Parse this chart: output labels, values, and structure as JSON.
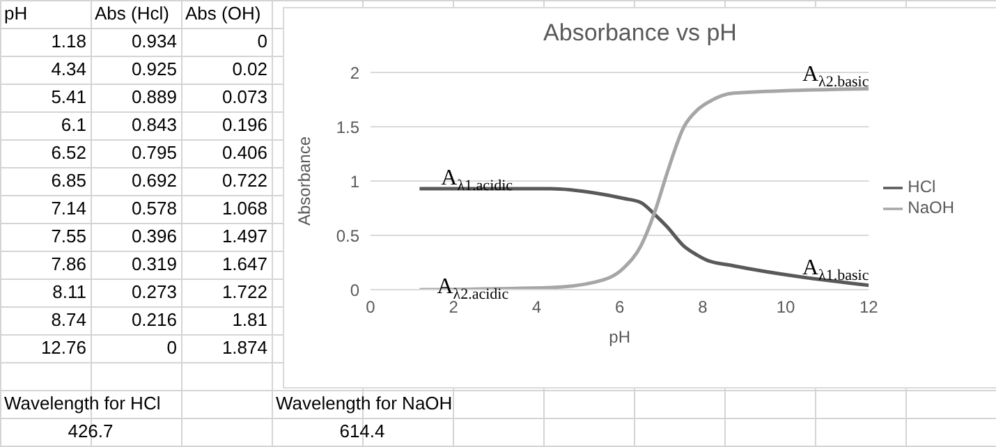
{
  "chart_data": [
    {
      "type": "other",
      "annotations": [
        "pH",
        "Abs (Hcl)",
        "Abs (OH)",
        "1.18",
        "0.934",
        "0",
        "4.34",
        "0.925",
        "0.02",
        "5.41",
        "0.889",
        "0.073",
        "6.1",
        "0.843",
        "0.196",
        "6.52",
        "0.795",
        "0.406",
        "6.85",
        "0.692",
        "0.722",
        "7.14",
        "0.578",
        "1.068",
        "7.55",
        "0.396",
        "1.497",
        "7.86",
        "0.319",
        "1.647",
        "8.11",
        "0.273",
        "1.722",
        "8.74",
        "0.216",
        "1.81",
        "12.76",
        "0",
        "1.874",
        "Wavelength for HCl",
        "426.7",
        "Wavelength for NaOH",
        "614.4"
      ]
    },
    {
      "type": "line",
      "title": "Absorbance vs pH",
      "xlabel": "pH",
      "ylabel": "Absorbance",
      "x": [
        1.18,
        4.34,
        5.41,
        6.1,
        6.52,
        6.85,
        7.14,
        7.55,
        7.86,
        8.11,
        8.74,
        12
      ],
      "series": [
        {
          "name": "HCl",
          "color": "#595959",
          "values": [
            0.93,
            0.93,
            0.89,
            0.84,
            0.8,
            0.69,
            0.58,
            0.4,
            0.32,
            0.27,
            0.22,
            0.04
          ]
        },
        {
          "name": "NaOH",
          "color": "#a6a6a6",
          "values": [
            0,
            0.02,
            0.07,
            0.2,
            0.41,
            0.72,
            1.07,
            1.5,
            1.65,
            1.72,
            1.81,
            1.85
          ]
        }
      ],
      "xlim": [
        0,
        12
      ],
      "xticks": [
        0,
        2,
        4,
        6,
        8,
        10,
        12
      ],
      "ylim": [
        0,
        2
      ],
      "yticks": [
        0,
        0.5,
        1,
        1.5,
        2
      ],
      "grid": "y",
      "legend": "right",
      "marker": "none",
      "line_style": "solid",
      "annotations": [
        "A$_{λ1.acidic}$",
        "A$_{λ2.acidic}$",
        "A$_{λ2.basic}$",
        "A$_{λ1.basic}$"
      ]
    }
  ]
}
